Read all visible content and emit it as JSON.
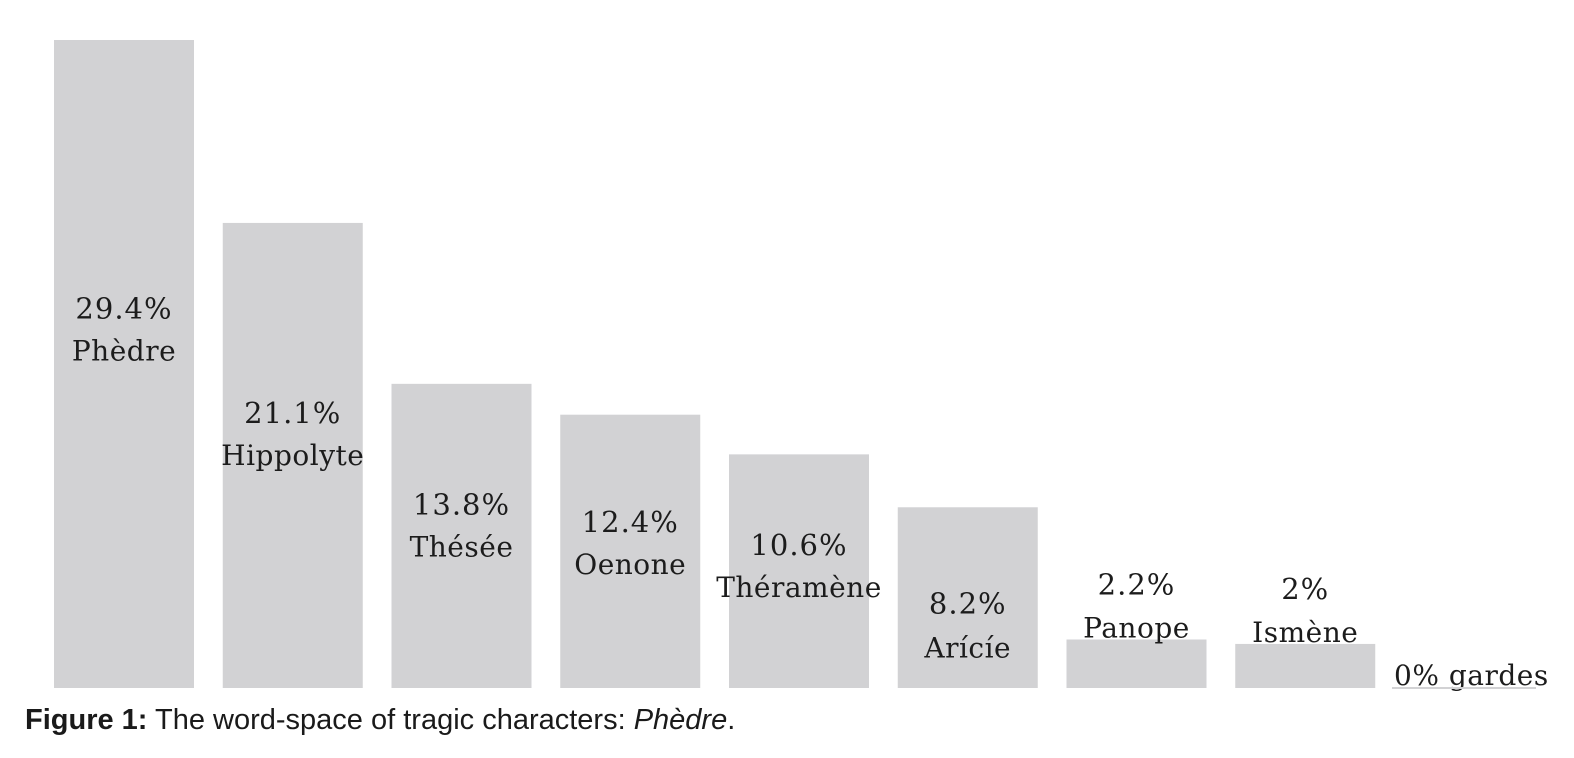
{
  "chart_data": {
    "type": "bar",
    "categories": [
      "Phèdre",
      "Hippolyte",
      "Thésée",
      "Oenone",
      "Théramène",
      "Arícíe",
      "Panope",
      "Ismène",
      "gardes"
    ],
    "values": [
      29.4,
      21.1,
      13.8,
      12.4,
      10.6,
      8.2,
      2.2,
      2,
      0
    ],
    "value_labels": [
      "29.4%",
      "21.1%",
      "13.8%",
      "12.4%",
      "10.6%",
      "8.2%",
      "2.2%",
      "2%",
      "0%"
    ],
    "ylim": [
      0,
      29.4
    ],
    "bar_color": "#d2d2d4",
    "grid": false,
    "legend": "none"
  },
  "caption": {
    "label": "Figure 1:",
    "text": " The word-space of tragic characters: ",
    "italic_text": "Phèdre",
    "end": "."
  }
}
